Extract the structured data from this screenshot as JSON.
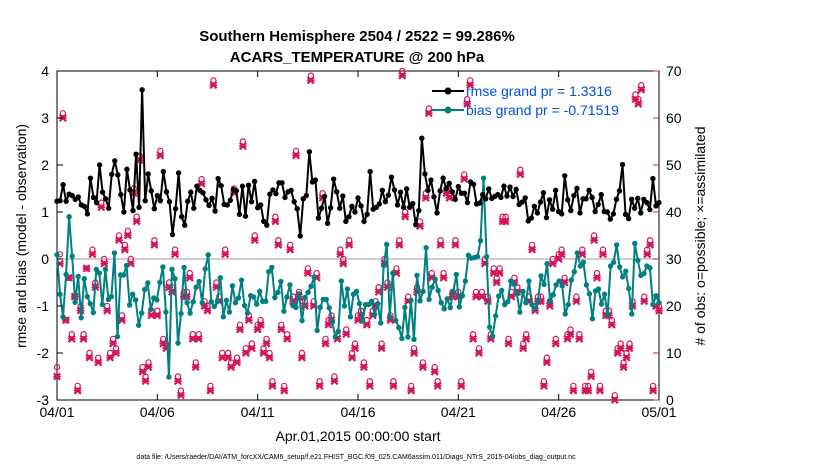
{
  "chart_data": {
    "type": "line",
    "title_line1": "Southern Hemisphere 2504 / 2522 = 99.286%",
    "title_line2": "ACARS_TEMPERATURE @ 200 hPa",
    "xlabel": "Apr.01,2015 00:00:00 start",
    "ylabel_left": "rmse and bias (model - observation)",
    "ylabel_right": "# of obs: o=possible; ×=assimilated",
    "footer": "data file: /Users/raeder/DAI/ATM_forcXX/CAM6_setup/f.e21.FHIST_BGC.f09_025.CAM6assim.011/Diags_NTrS_2015-04/obs_diag_output.nc",
    "xlim": [
      0,
      30
    ],
    "ylim_left": [
      -3,
      4
    ],
    "ylim_right": [
      0,
      70
    ],
    "x_ticks": [
      0,
      5,
      10,
      15,
      20,
      25,
      30
    ],
    "x_tick_labels": [
      "04/01",
      "04/06",
      "04/11",
      "04/16",
      "04/21",
      "04/26",
      "05/01"
    ],
    "y_left_ticks": [
      -3,
      -2,
      -1,
      0,
      1,
      2,
      3,
      4
    ],
    "y_left_tick_labels": [
      "-3",
      "-2",
      "-1",
      "0",
      "1",
      "2",
      "3",
      "4"
    ],
    "y_right_ticks": [
      0,
      10,
      20,
      30,
      40,
      50,
      60,
      70
    ],
    "y_right_tick_labels": [
      "0",
      "10",
      "20",
      "30",
      "40",
      "50",
      "60",
      "70"
    ],
    "colors": {
      "rmse": "#000000",
      "bias": "#008080",
      "obs": "#d4145a",
      "legend_text": "#0050e0",
      "zero_line": "#b0b0b0"
    },
    "series": [
      {
        "name": "rmse grand pr = 1.3316",
        "values": [
          1.23,
          1.24,
          1.58,
          1.23,
          1.38,
          1.35,
          1.27,
          1.32,
          1.15,
          1.12,
          0.96,
          1.72,
          1.31,
          1.2,
          2.0,
          1.42,
          1.28,
          1.08,
          1.8,
          2.09,
          1.79,
          1.37,
          1.0,
          1.91,
          1.47,
          1.03,
          2.23,
          1.1,
          3.6,
          1.24,
          1.81,
          1.45,
          1.07,
          1.35,
          1.24,
          1.86,
          1.43,
          1.22,
          0.52,
          1.07,
          1.83,
          0.9,
          0.72,
          1.23,
          1.42,
          1.08,
          1.55,
          1.46,
          1.41,
          1.26,
          1.14,
          1.29,
          1.02,
          1.71,
          1.56,
          1.16,
          1.15,
          1.25,
          1.48,
          1.45,
          0.95,
          1.55,
          0.91,
          1.57,
          1.22,
          1.65,
          1.09,
          1.15,
          0.8,
          0.72,
          1.38,
          1.47,
          1.39,
          1.62,
          1.62,
          1.31,
          1.43,
          1.46,
          1.22,
          1.07,
          0.49,
          1.28,
          1.35,
          2.28,
          1.64,
          1.68,
          0.87,
          1.08,
          1.33,
          0.76,
          1.09,
          1.7,
          1.43,
          1.08,
          1.34,
          0.8,
          0.9,
          1.12,
          1.0,
          1.3,
          1.13,
          0.8,
          0.95,
          1.86,
          1.06,
          1.1,
          1.17,
          1.46,
          1.22,
          1.36,
          1.74,
          1.47,
          1.15,
          1.42,
          1.1,
          1.49,
          1.1,
          1.18,
          0.73,
          1.03,
          2.57,
          1.81,
          1.46,
          1.68,
          1.32,
          0.98,
          1.45,
          1.72,
          1.5,
          1.61,
          1.43,
          1.27,
          1.54,
          1.4,
          1.4,
          1.2,
          1.64,
          1.59,
          1.17,
          1.19,
          1.37,
          1.28,
          1.49,
          1.29,
          1.33,
          1.37,
          1.31,
          1.55,
          1.34,
          1.53,
          1.33,
          1.48,
          1.16,
          1.21,
          1.3,
          0.81,
          0.87,
          1.12,
          0.98,
          1.21,
          1.41,
          0.88,
          1.26,
          1.06,
          1.46,
          1.01,
          0.96,
          1.77,
          1.26,
          1.03,
          1.35,
          1.5,
          0.98,
          1.28,
          1.28,
          1.46,
          1.31,
          1.01,
          1.16,
          1.37,
          1.01,
          1.0,
          0.85,
          0.96,
          1.27,
          1.45,
          2.01,
          0.95,
          0.86,
          1.27,
          1.08,
          1.29,
          0.98,
          1.27,
          1.2,
          1.05,
          1.71,
          1.13,
          1.2
        ]
      },
      {
        "name": "bias grand pr = -0.71519",
        "values": [
          0.09,
          -0.75,
          -1.23,
          -0.33,
          0.9,
          0.06,
          -0.92,
          -0.37,
          -1.25,
          -0.42,
          -0.8,
          -0.95,
          -1.14,
          -0.22,
          -0.3,
          -0.97,
          -0.22,
          -0.86,
          -0.8,
          0.13,
          -1.65,
          -0.34,
          -0.34,
          -0.14,
          -0.98,
          -0.75,
          -0.87,
          -1.41,
          -1.15,
          -0.65,
          -0.51,
          -1.07,
          -0.83,
          -0.87,
          -0.5,
          -0.17,
          -1.13,
          -2.51,
          -0.22,
          -0.42,
          -1.79,
          -1.16,
          -0.18,
          -0.93,
          -1.15,
          -0.91,
          -0.6,
          -0.48,
          -0.93,
          -0.21,
          0.09,
          -0.91,
          -1.01,
          -0.9,
          -0.4,
          -1.23,
          -0.88,
          -1.13,
          -0.57,
          -0.93,
          -0.83,
          -0.45,
          -0.99,
          -1.15,
          -0.78,
          -0.81,
          -0.96,
          -0.69,
          -0.9,
          -0.9,
          -0.27,
          -0.18,
          -0.82,
          -0.71,
          -0.48,
          -1.11,
          -0.81,
          -0.55,
          -0.99,
          -1.03,
          -0.74,
          -1.31,
          -0.82,
          -0.71,
          -0.58,
          -0.38,
          -1.52,
          -1.03,
          -0.86,
          -0.86,
          -1.04,
          -1.33,
          -1.66,
          -1.54,
          -0.47,
          -1.0,
          -0.64,
          -1.23,
          -0.75,
          -0.69,
          -0.95,
          -1.32,
          -0.97,
          -0.97,
          -0.9,
          -1.18,
          -0.95,
          -1.36,
          -0.14,
          0.31,
          -1.23,
          -0.3,
          -1.31,
          -1.46,
          -1.69,
          -1.03,
          -1.66,
          -0.88,
          -1.71,
          -0.35,
          -0.89,
          -0.69,
          0.24,
          -0.86,
          -0.6,
          -0.43,
          -0.67,
          -0.93,
          -1.06,
          -0.85,
          -1.03,
          -0.7,
          -0.33,
          -1.02,
          -0.78,
          -0.47,
          0.08,
          0.02,
          0.03,
          0.05,
          0.39,
          1.72,
          0.05,
          -1.45,
          -1.64,
          -1.21,
          -0.79,
          -0.67,
          -0.97,
          -0.91,
          -0.47,
          -0.53,
          -0.74,
          -1.13,
          -0.69,
          -0.93,
          -0.47,
          -0.97,
          -1.06,
          -0.88,
          -0.36,
          -0.54,
          -0.1,
          -0.9,
          -0.76,
          -0.55,
          -0.47,
          -0.57,
          -1.17,
          -0.97,
          -0.45,
          -0.27,
          0.13,
          -0.15,
          -0.07,
          -0.55,
          -0.74,
          -1.27,
          -0.68,
          -0.64,
          -0.96,
          -0.75,
          -1.18,
          -0.15,
          -0.07,
          0.3,
          -0.17,
          -0.38,
          -0.26,
          -0.63,
          -1.17,
          0.33,
          -0.03,
          -0.35,
          -0.31,
          -0.15,
          -0.19,
          -0.97,
          -0.78,
          -0.93
        ]
      }
    ],
    "obs_possible": [
      7,
      31,
      61,
      17,
      26,
      14,
      22,
      3,
      20,
      14,
      28,
      10,
      32,
      25,
      9,
      42,
      30,
      20,
      10,
      13,
      11,
      35,
      18,
      33,
      36,
      30,
      45,
      39,
      52,
      7,
      5,
      8,
      19,
      34,
      19,
      53,
      13,
      12,
      25,
      24,
      32,
      5,
      2,
      23,
      23,
      27,
      14,
      8,
      14,
      47,
      21,
      20,
      3,
      68,
      25,
      22,
      10,
      32,
      10,
      8,
      45,
      9,
      16,
      55,
      11,
      18,
      12,
      35,
      16,
      17,
      11,
      13,
      10,
      4,
      39,
      34,
      16,
      3,
      14,
      33,
      22,
      53,
      23,
      10,
      21,
      28,
      69,
      21,
      27,
      4,
      44,
      13,
      17,
      18,
      5,
      14,
      32,
      30,
      15,
      34,
      10,
      12,
      18,
      19,
      8,
      17,
      4,
      19,
      21,
      24,
      12,
      30,
      25,
      18,
      4,
      28,
      34,
      70,
      40,
      22,
      3,
      11,
      24,
      38,
      8,
      44,
      62,
      27,
      7,
      4,
      34,
      27,
      45,
      44,
      23,
      34,
      23,
      4,
      48,
      64,
      68,
      14,
      23,
      11,
      23,
      30,
      22,
      14,
      28,
      26,
      28,
      39,
      39,
      13,
      23,
      26,
      24,
      49,
      12,
      14,
      22,
      33,
      20,
      22,
      22,
      4,
      9,
      21,
      30,
      13,
      31,
      32,
      26,
      14,
      15,
      3,
      22,
      14,
      32,
      3,
      3,
      6,
      35,
      27,
      3,
      32,
      19,
      19,
      17,
      1,
      11,
      12,
      8,
      10,
      12,
      21,
      65,
      64,
      67,
      22,
      32,
      34,
      3,
      21,
      20
    ],
    "obs_assimilated": [
      5,
      29,
      60,
      17,
      26,
      13,
      22,
      2,
      19,
      13,
      28,
      9,
      31,
      24,
      8,
      41,
      29,
      19,
      9,
      12,
      10,
      34,
      17,
      32,
      35,
      29,
      44,
      38,
      51,
      6,
      4,
      7,
      18,
      33,
      18,
      52,
      12,
      11,
      24,
      23,
      31,
      4,
      1,
      22,
      22,
      26,
      13,
      7,
      13,
      46,
      20,
      19,
      2,
      67,
      24,
      21,
      9,
      31,
      9,
      7,
      44,
      8,
      15,
      54,
      10,
      17,
      11,
      34,
      15,
      16,
      10,
      12,
      9,
      3,
      38,
      33,
      15,
      2,
      13,
      32,
      21,
      52,
      22,
      9,
      20,
      27,
      68,
      20,
      26,
      3,
      43,
      12,
      16,
      17,
      4,
      13,
      31,
      29,
      14,
      33,
      9,
      11,
      17,
      18,
      7,
      16,
      3,
      18,
      20,
      23,
      11,
      29,
      24,
      17,
      3,
      27,
      33,
      69,
      39,
      21,
      2,
      10,
      23,
      37,
      7,
      43,
      61,
      26,
      6,
      3,
      33,
      26,
      44,
      43,
      22,
      33,
      22,
      3,
      47,
      63,
      67,
      13,
      22,
      10,
      22,
      29,
      21,
      13,
      27,
      25,
      27,
      38,
      38,
      12,
      22,
      25,
      23,
      48,
      11,
      13,
      21,
      32,
      19,
      21,
      21,
      3,
      8,
      20,
      29,
      12,
      30,
      31,
      25,
      13,
      14,
      2,
      21,
      13,
      31,
      2,
      2,
      5,
      34,
      26,
      2,
      31,
      18,
      18,
      16,
      0,
      10,
      11,
      7,
      9,
      11,
      20,
      64,
      63,
      66,
      21,
      31,
      33,
      2,
      20,
      19
    ]
  }
}
